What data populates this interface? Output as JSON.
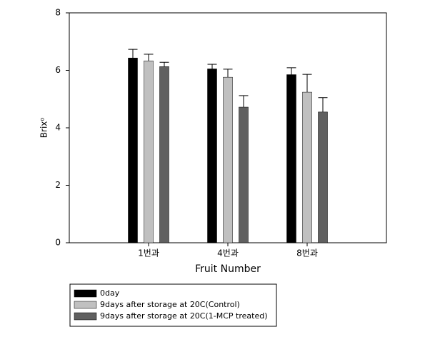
{
  "chart_data": {
    "type": "bar",
    "y_label": "Brix⁰",
    "x_label": "Fruit Number",
    "categories": [
      "1번과",
      "4번과",
      "8번과"
    ],
    "series": [
      {
        "name": "0day",
        "color": "#000000",
        "values": [
          6.43,
          6.05,
          5.85
        ],
        "errors": [
          0.3,
          0.16,
          0.24
        ]
      },
      {
        "name": "9days after storage at 20C(Control)",
        "color": "#c0c0c0",
        "values": [
          6.33,
          5.76,
          5.24
        ],
        "errors": [
          0.23,
          0.28,
          0.62
        ]
      },
      {
        "name": "9days after storage at 20C(1-MCP treated)",
        "color": "#606060",
        "values": [
          6.13,
          4.72,
          4.55
        ],
        "errors": [
          0.15,
          0.4,
          0.5
        ]
      }
    ],
    "ylim": [
      0,
      8
    ],
    "yticks": [
      0,
      2,
      4,
      6,
      8
    ],
    "grid": false,
    "legend": "bottom-left"
  }
}
